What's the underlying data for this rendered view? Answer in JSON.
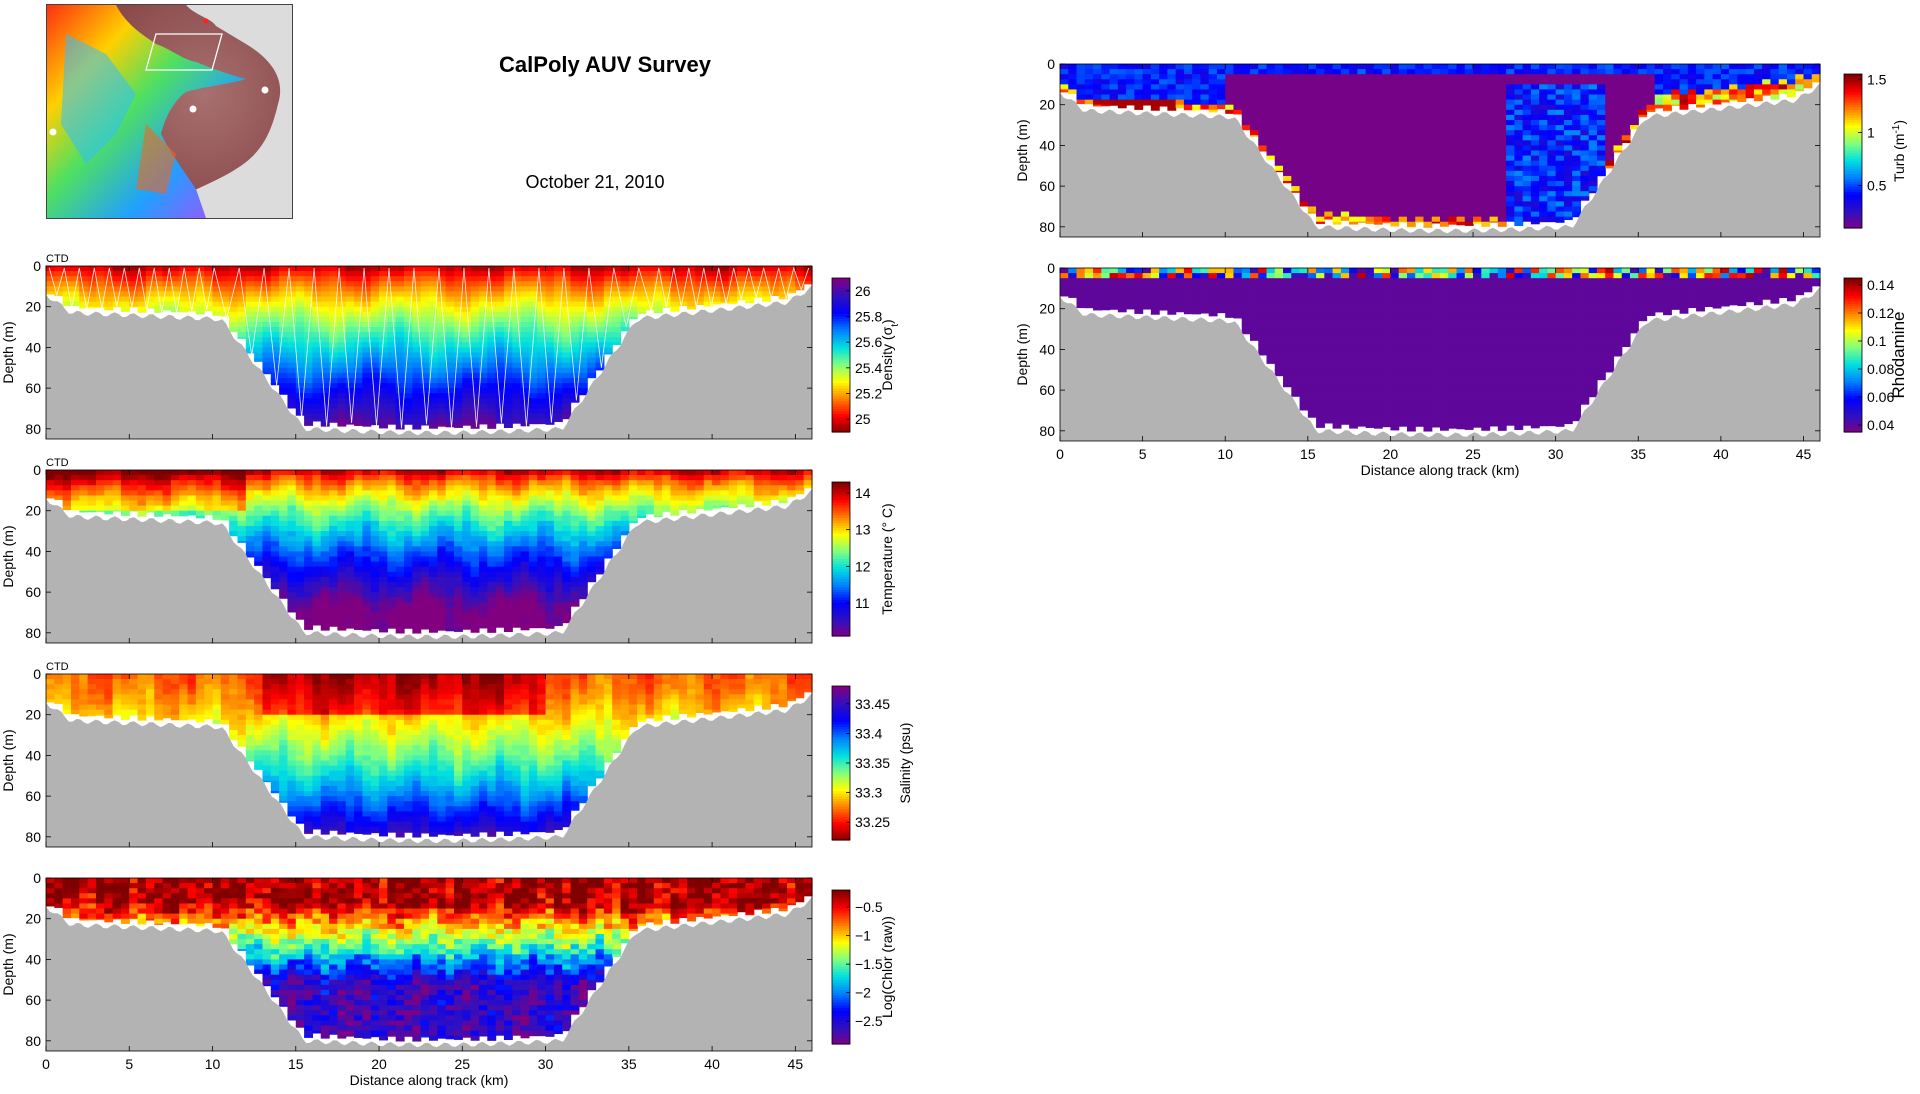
{
  "header": {
    "title": "CalPoly AUV Survey",
    "date": "October 21, 2010"
  },
  "colors": {
    "seabed": "#b3b3b3",
    "jet": [
      "#800080",
      "#3010c0",
      "#0000ff",
      "#0080ff",
      "#00e0e0",
      "#80ff80",
      "#ffff00",
      "#ff8000",
      "#ff0000",
      "#800000"
    ]
  },
  "map_inset": {
    "icons": [
      "relief-map",
      "survey-box",
      "station-dots"
    ]
  },
  "chart_data": [
    {
      "id": "density",
      "type": "heatmap",
      "panel_label": "CTD",
      "xlabel": "",
      "ylabel": "Depth (m)",
      "colorbar_label": "Density (σ",
      "colorbar_label_sub": "t",
      "colorbar_label_end": ")",
      "xlim": [
        0,
        46
      ],
      "ylim": [
        0,
        85
      ],
      "y_reversed": true,
      "x_ticks": [
        0,
        5,
        10,
        15,
        20,
        25,
        30,
        35,
        40,
        45
      ],
      "x_tick_labels": [
        "",
        "",
        "",
        "",
        "",
        "",
        "",
        "",
        "",
        ""
      ],
      "y_ticks": [
        0,
        20,
        40,
        60,
        80
      ],
      "colorbar_range": [
        24.9,
        26.1
      ],
      "colorbar_reversed": true,
      "colorbar_ticks": [
        25,
        25.2,
        25.4,
        25.6,
        25.8,
        26
      ],
      "field": "density",
      "tracks": true
    },
    {
      "id": "temperature",
      "type": "heatmap",
      "panel_label": "CTD",
      "xlabel": "",
      "ylabel": "Depth (m)",
      "colorbar_label": "Temperature (° C)",
      "xlim": [
        0,
        46
      ],
      "ylim": [
        0,
        85
      ],
      "y_reversed": true,
      "x_ticks": [
        0,
        5,
        10,
        15,
        20,
        25,
        30,
        35,
        40,
        45
      ],
      "x_tick_labels": [
        "",
        "",
        "",
        "",
        "",
        "",
        "",
        "",
        "",
        ""
      ],
      "y_ticks": [
        0,
        20,
        40,
        60,
        80
      ],
      "colorbar_range": [
        10.1,
        14.3
      ],
      "colorbar_reversed": false,
      "colorbar_ticks": [
        11,
        12,
        13,
        14
      ],
      "field": "temperature"
    },
    {
      "id": "salinity",
      "type": "heatmap",
      "panel_label": "CTD",
      "xlabel": "",
      "ylabel": "Depth (m)",
      "colorbar_label": "Salinity (psu)",
      "xlim": [
        0,
        46
      ],
      "ylim": [
        0,
        85
      ],
      "y_reversed": true,
      "x_ticks": [
        0,
        5,
        10,
        15,
        20,
        25,
        30,
        35,
        40,
        45
      ],
      "x_tick_labels": [
        "",
        "",
        "",
        "",
        "",
        "",
        "",
        "",
        "",
        ""
      ],
      "y_ticks": [
        0,
        20,
        40,
        60,
        80
      ],
      "colorbar_range": [
        33.22,
        33.48
      ],
      "colorbar_reversed": true,
      "colorbar_ticks": [
        33.25,
        33.3,
        33.35,
        33.4,
        33.45
      ],
      "field": "salinity"
    },
    {
      "id": "chlor",
      "type": "heatmap",
      "panel_label": "",
      "xlabel": "Distance along track (km)",
      "ylabel": "Depth (m)",
      "colorbar_label": "Log(Chlor (raw))",
      "xlim": [
        0,
        46
      ],
      "ylim": [
        0,
        85
      ],
      "y_reversed": true,
      "x_ticks": [
        0,
        5,
        10,
        15,
        20,
        25,
        30,
        35,
        40,
        45
      ],
      "x_tick_labels": [
        "0",
        "5",
        "10",
        "15",
        "20",
        "25",
        "30",
        "35",
        "40",
        "45"
      ],
      "y_ticks": [
        0,
        20,
        40,
        60,
        80
      ],
      "colorbar_range": [
        -2.9,
        -0.2
      ],
      "colorbar_reversed": false,
      "colorbar_ticks": [
        -2.5,
        -2,
        -1.5,
        -1,
        -0.5
      ],
      "colorbar_tick_labels": [
        "−2.5",
        "−2",
        "−1.5",
        "−1",
        "−0.5"
      ],
      "field": "chlor"
    },
    {
      "id": "turbidity",
      "type": "heatmap",
      "panel_label": "",
      "xlabel": "",
      "ylabel": "Depth (m)",
      "colorbar_label": "Turb (m",
      "colorbar_label_sup": "-1",
      "colorbar_label_end": ")",
      "xlim": [
        0,
        46
      ],
      "ylim": [
        0,
        85
      ],
      "y_reversed": true,
      "x_ticks": [
        0,
        5,
        10,
        15,
        20,
        25,
        30,
        35,
        40,
        45
      ],
      "x_tick_labels": [
        "",
        "",
        "",
        "",
        "",
        "",
        "",
        "",
        "",
        ""
      ],
      "y_ticks": [
        0,
        20,
        40,
        60,
        80
      ],
      "colorbar_range": [
        0.1,
        1.55
      ],
      "colorbar_reversed": false,
      "colorbar_ticks": [
        0.5,
        1,
        1.5
      ],
      "field": "turbidity"
    },
    {
      "id": "rhodamine",
      "type": "heatmap",
      "panel_label": "",
      "xlabel": "Distance along track (km)",
      "ylabel": "Depth (m)",
      "colorbar_label": "Rhodamine",
      "xlim": [
        0,
        46
      ],
      "ylim": [
        0,
        85
      ],
      "y_reversed": true,
      "x_ticks": [
        0,
        5,
        10,
        15,
        20,
        25,
        30,
        35,
        40,
        45
      ],
      "x_tick_labels": [
        "0",
        "5",
        "10",
        "15",
        "20",
        "25",
        "30",
        "35",
        "40",
        "45"
      ],
      "y_ticks": [
        0,
        20,
        40,
        60,
        80
      ],
      "colorbar_range": [
        0.035,
        0.145
      ],
      "colorbar_reversed": false,
      "colorbar_ticks": [
        0.04,
        0.06,
        0.08,
        0.1,
        0.12,
        0.14
      ],
      "field": "rhodamine"
    }
  ]
}
